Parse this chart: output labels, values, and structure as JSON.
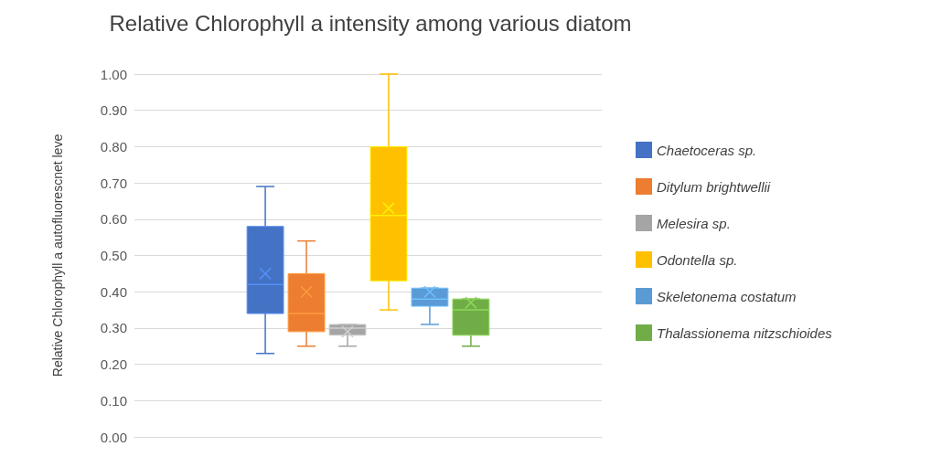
{
  "chart_data": {
    "type": "box",
    "title": "Relative Chlorophyll a intensity among various diatom",
    "ylabel": "Relative Chlorophyll a autofluorescnet leve",
    "categories": [
      null
    ],
    "series": [
      {
        "name": "Chaetoceras sp.",
        "color": "#4472c4",
        "boxes": [
          {
            "low": 0.23,
            "q1": 0.34,
            "median": 0.42,
            "q3": 0.58,
            "high": 0.69,
            "mean": 0.45
          }
        ]
      },
      {
        "name": "Ditylum brightwellii",
        "color": "#ed7d31",
        "boxes": [
          {
            "low": 0.25,
            "q1": 0.29,
            "median": 0.34,
            "q3": 0.45,
            "high": 0.54,
            "mean": 0.4
          }
        ]
      },
      {
        "name": "Melesira sp.",
        "color": "#a5a5a5",
        "boxes": [
          {
            "low": 0.25,
            "q1": 0.28,
            "median": 0.3,
            "q3": 0.31,
            "high": 0.31,
            "mean": 0.29
          }
        ]
      },
      {
        "name": "Odontella sp.",
        "color": "#ffc000",
        "boxes": [
          {
            "low": 0.35,
            "q1": 0.43,
            "median": 0.61,
            "q3": 0.8,
            "high": 1.0,
            "mean": 0.63
          }
        ]
      },
      {
        "name": "Skeletonema costatum",
        "color": "#5b9bd5",
        "boxes": [
          {
            "low": 0.31,
            "q1": 0.36,
            "median": 0.38,
            "q3": 0.41,
            "high": 0.41,
            "mean": 0.4
          }
        ]
      },
      {
        "name": "Thalassionema nitzschioides",
        "color": "#70ad47",
        "boxes": [
          {
            "low": 0.25,
            "q1": 0.28,
            "median": 0.35,
            "q3": 0.38,
            "high": 0.38,
            "mean": 0.37
          }
        ]
      }
    ],
    "ylim": [
      0,
      1
    ],
    "yticks": [
      {
        "value": 0,
        "label": "0.00"
      },
      {
        "value": 0.1,
        "label": "0.10"
      },
      {
        "value": 0.2,
        "label": "0.20"
      },
      {
        "value": 0.3,
        "label": "0.30"
      },
      {
        "value": 0.4,
        "label": "0.40"
      },
      {
        "value": 0.5,
        "label": "0.50"
      },
      {
        "value": 0.6,
        "label": "0.60"
      },
      {
        "value": 0.7,
        "label": "0.70"
      },
      {
        "value": 0.8,
        "label": "0.80"
      },
      {
        "value": 0.9,
        "label": "0.90"
      },
      {
        "value": 1,
        "label": "1.00"
      }
    ],
    "grid": "y",
    "legend": "right"
  }
}
